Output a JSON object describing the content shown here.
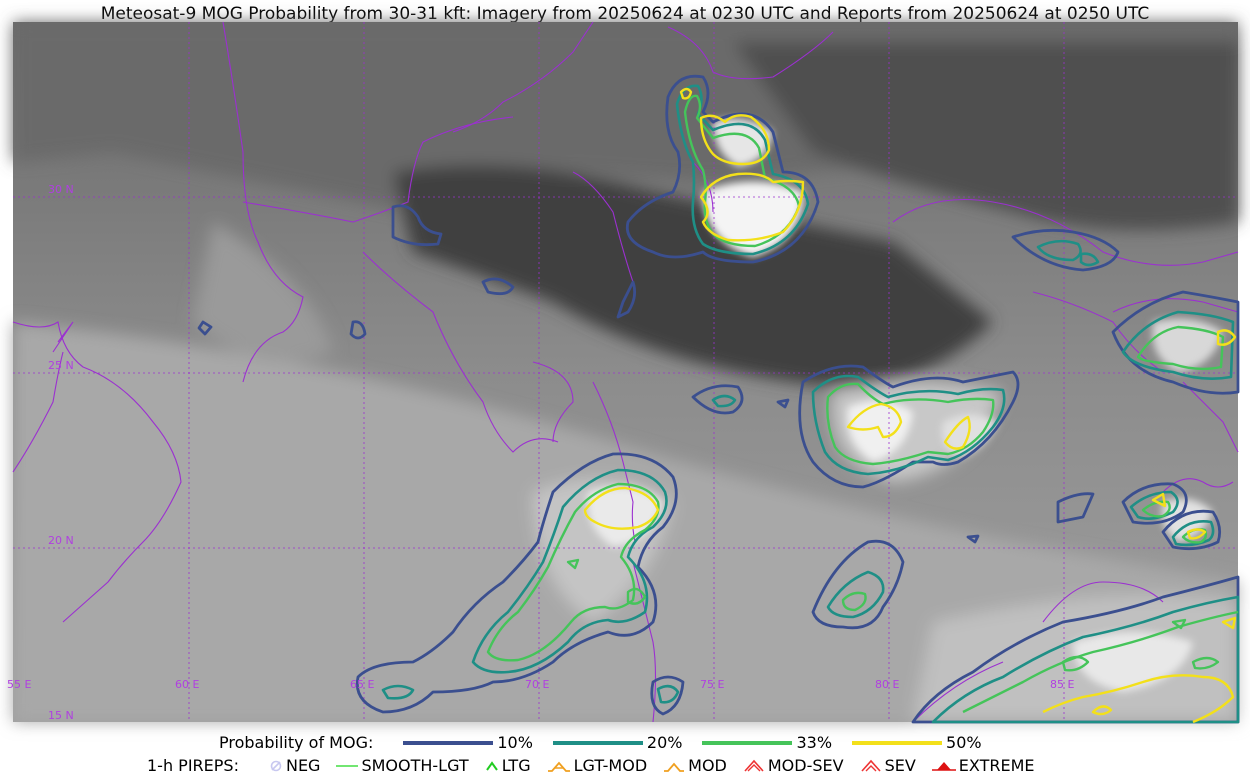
{
  "title": "Meteosat-9 MOG Probability from 30-31 kft: Imagery from 20250624 at 0230 UTC and Reports from 20250624 at 0250 UTC",
  "map": {
    "lon_labels": [
      "55 E",
      "60 E",
      "65 E",
      "70 E",
      "75 E",
      "80 E",
      "85 E"
    ],
    "lat_labels": [
      "30 N",
      "25 N",
      "20 N",
      "15 N"
    ],
    "grid_color": "#9b30d0",
    "border_color": "#9b30d0"
  },
  "legend": {
    "probability_title": "Probability of MOG:",
    "probability_levels": [
      {
        "label": "10%",
        "color": "#3b4f8f"
      },
      {
        "label": "20%",
        "color": "#1f8f86"
      },
      {
        "label": "33%",
        "color": "#45c45a"
      },
      {
        "label": "50%",
        "color": "#f3e01a"
      }
    ],
    "pireps_title": "1-h PIREPS:",
    "pireps": [
      {
        "label": "NEG",
        "color": "#c8c8f0",
        "icon": "neg-icon"
      },
      {
        "label": "SMOOTH-LGT",
        "color": "#44dd44",
        "icon": "smooth-lgt-icon"
      },
      {
        "label": "LTG",
        "color": "#22cc22",
        "icon": "ltg-icon"
      },
      {
        "label": "LGT-MOD",
        "color": "#f0a020",
        "icon": "lgt-mod-icon"
      },
      {
        "label": "MOD",
        "color": "#f0a020",
        "icon": "mod-icon"
      },
      {
        "label": "MOD-SEV",
        "color": "#ee3333",
        "icon": "mod-sev-icon"
      },
      {
        "label": "SEV",
        "color": "#ee3333",
        "icon": "sev-icon"
      },
      {
        "label": "EXTREME",
        "color": "#dd1111",
        "icon": "extreme-icon"
      }
    ]
  }
}
